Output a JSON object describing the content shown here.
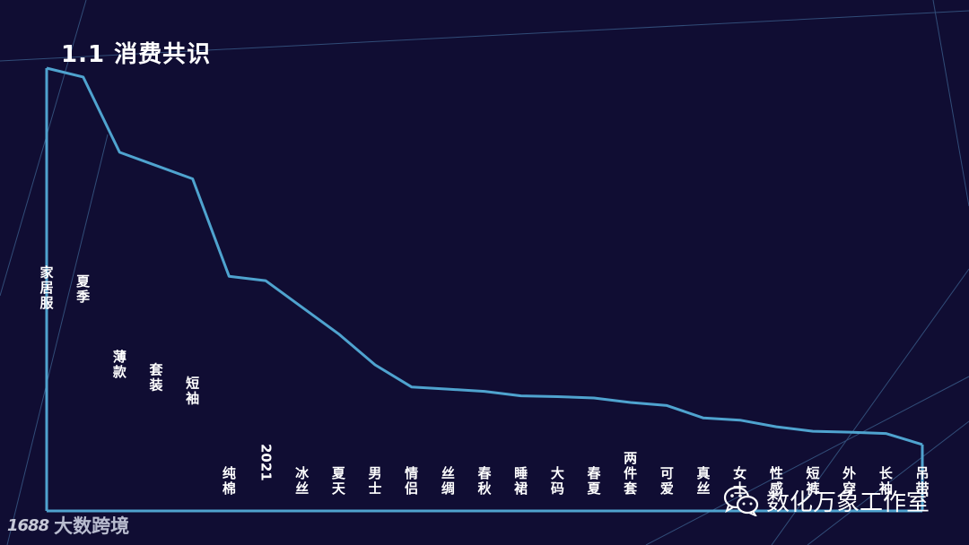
{
  "title": "1.1 消费共识",
  "watermark_text": "数化万象工作室",
  "watermark_icon": "wechat-icon",
  "brand_logo": "1688",
  "brand_text": "大数跨境",
  "colors": {
    "background": "#100d33",
    "line": "#4fa3cf",
    "label": "#ffffff",
    "decor_lines": "#3a5d8a"
  },
  "chart_data": {
    "type": "line",
    "categories": [
      "家居服",
      "夏季",
      "薄款",
      "套装",
      "短袖",
      "纯棉",
      "2021",
      "冰丝",
      "夏天",
      "男士",
      "情侣",
      "丝绸",
      "春秋",
      "睡裙",
      "大码",
      "春夏",
      "两件套",
      "可爱",
      "真丝",
      "女士",
      "性感",
      "短裤",
      "外穿",
      "长袖",
      "吊带"
    ],
    "values": [
      100,
      98,
      81,
      78,
      75,
      53,
      52,
      46,
      40,
      33,
      28,
      27.5,
      27,
      26,
      25.8,
      25.5,
      24.5,
      23.8,
      21,
      20.5,
      19,
      18,
      17.8,
      17.5,
      15
    ],
    "ylim": [
      0,
      100
    ],
    "grid": false,
    "legend": "none",
    "title": "",
    "xlabel": "",
    "ylabel": ""
  }
}
